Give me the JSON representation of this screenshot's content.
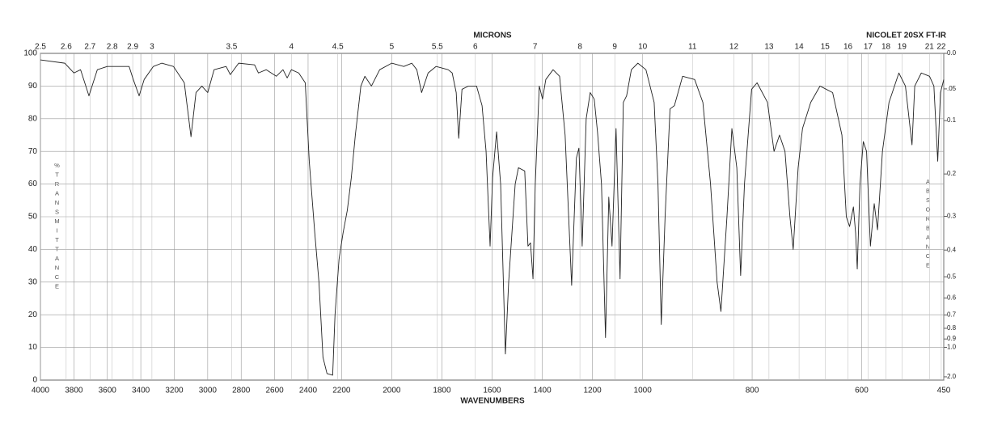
{
  "chart_data": {
    "type": "line",
    "title": "NICOLET 20SX FT-IR",
    "x_label": "WAVENUMBERS",
    "x2_label": "MICRONS",
    "y_label": "%TRANSMITTANCE",
    "y2_label": "ABSORBANCE",
    "xlim": [
      4000,
      450
    ],
    "x_scale": "piecewise",
    "x_breaks": [
      2200,
      1000
    ],
    "xticks": [
      4000,
      3800,
      3600,
      3400,
      3200,
      3000,
      2800,
      2600,
      2400,
      2200,
      2000,
      1800,
      1600,
      1400,
      1200,
      1000,
      800,
      600,
      450
    ],
    "x2ticks": [
      2.5,
      2.6,
      2.7,
      2.8,
      2.9,
      3,
      3.5,
      4,
      4.5,
      5,
      5.5,
      6,
      7,
      8,
      9,
      10,
      11,
      12,
      13,
      14,
      15,
      16,
      17,
      18,
      19,
      21,
      22
    ],
    "ylim": [
      0,
      100
    ],
    "yticks": [
      0,
      10,
      20,
      30,
      40,
      50,
      60,
      70,
      80,
      90,
      100
    ],
    "y2ticks": [
      {
        "value": 0,
        "label": "0.0"
      },
      {
        "value": 0.05,
        "label": ".05"
      },
      0.1,
      0.2,
      0.3,
      0.4,
      0.5,
      0.6,
      0.7,
      0.8,
      0.9,
      {
        "value": 1,
        "label": "1.0"
      },
      {
        "value": 2,
        "label": "2.0"
      }
    ],
    "grid": true,
    "x": [
      4000,
      3855,
      3800,
      3760,
      3710,
      3660,
      3600,
      3470,
      3445,
      3410,
      3380,
      3325,
      3275,
      3205,
      3140,
      3100,
      3070,
      3035,
      3000,
      2962,
      2890,
      2865,
      2815,
      2720,
      2697,
      2650,
      2590,
      2550,
      2525,
      2500,
      2456,
      2417,
      2393,
      2360,
      2335,
      2311,
      2287,
      2253,
      2239,
      2215,
      2194,
      2177,
      2161,
      2145,
      2123,
      2107,
      2081,
      2048,
      2000,
      1952,
      1920,
      1900,
      1881,
      1855,
      1823,
      1775,
      1759,
      1743,
      1733,
      1720,
      1694,
      1662,
      1640,
      1624,
      1608,
      1598,
      1582,
      1566,
      1547,
      1534,
      1508,
      1495,
      1470,
      1457,
      1447,
      1437,
      1428,
      1412,
      1399,
      1386,
      1357,
      1331,
      1309,
      1283,
      1264,
      1254,
      1241,
      1225,
      1209,
      1193,
      1180,
      1164,
      1148,
      1135,
      1122,
      1106,
      1090,
      1077,
      1064,
      1045,
      1019,
      994,
      979,
      972,
      966,
      959,
      950,
      942,
      927,
      905,
      890,
      876,
      864,
      857,
      846,
      837,
      828,
      821,
      814,
      801,
      791,
      772,
      760,
      750,
      740,
      731,
      725,
      716,
      708,
      693,
      676,
      653,
      636,
      628,
      622,
      615,
      611,
      608,
      603,
      597,
      591,
      584,
      577,
      571,
      562,
      550,
      532,
      520,
      508,
      503,
      491,
      476,
      468,
      461,
      456,
      450
    ],
    "series": [
      {
        "color": "#222222",
        "values": [
          98,
          97,
          94,
          95,
          87,
          95,
          96,
          96,
          92,
          87,
          92,
          96,
          97,
          96,
          91,
          74.5,
          88,
          90,
          88,
          95,
          96,
          93.5,
          97,
          96.5,
          94,
          95,
          93,
          95,
          92.5,
          95,
          94,
          91,
          67,
          45,
          30,
          7,
          2,
          1.5,
          20,
          37,
          45,
          52,
          62,
          75,
          90,
          93,
          90,
          95,
          97,
          96,
          97,
          95,
          88,
          94,
          96,
          95,
          94,
          88,
          74,
          89,
          90,
          90,
          84,
          70,
          41,
          62,
          76,
          60,
          8,
          30,
          60,
          65,
          64,
          41,
          42,
          31,
          60,
          90,
          86,
          92,
          95,
          93,
          75,
          29,
          68,
          71,
          41,
          80,
          88,
          86,
          76,
          60,
          13,
          56,
          41,
          77,
          31,
          85,
          87,
          95,
          97,
          95,
          85,
          60,
          17,
          50,
          83,
          84,
          93,
          92,
          85,
          60,
          30,
          21,
          50,
          77,
          65,
          32,
          60,
          89,
          91,
          85,
          70,
          75,
          70,
          50,
          40,
          65,
          77,
          85,
          90,
          88,
          75,
          50,
          47,
          53,
          45,
          34,
          60,
          73,
          70,
          41,
          54,
          46,
          70,
          85,
          94,
          90,
          72,
          90,
          94,
          93,
          90,
          67,
          88,
          92
        ]
      }
    ]
  }
}
